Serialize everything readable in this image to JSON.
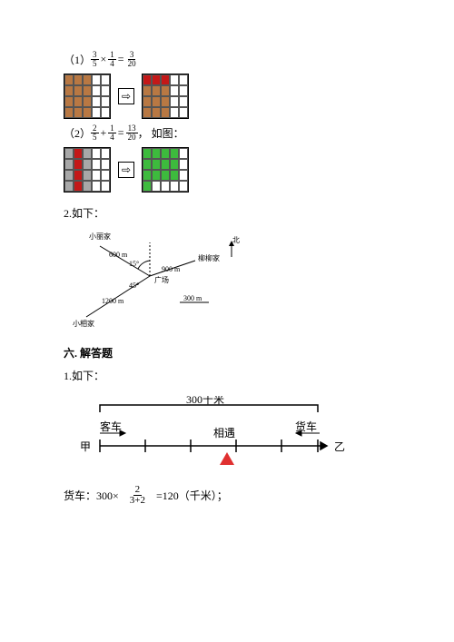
{
  "q1": {
    "prefix": "（1）",
    "f1": {
      "n": "3",
      "d": "5"
    },
    "op1": "×",
    "f2": {
      "n": "1",
      "d": "4"
    },
    "eqs": "=",
    "f3": {
      "n": "3",
      "d": "20"
    },
    "grid_left": {
      "rows": 4,
      "cols": 5,
      "fills": [
        "#b87843",
        "#b87843",
        "#b87843",
        "#fff",
        "#fff",
        "#b87843",
        "#b87843",
        "#b87843",
        "#fff",
        "#fff",
        "#b87843",
        "#b87843",
        "#b87843",
        "#fff",
        "#fff",
        "#b87843",
        "#b87843",
        "#b87843",
        "#fff",
        "#fff"
      ]
    },
    "grid_right": {
      "rows": 4,
      "cols": 5,
      "fills": [
        "#c41818",
        "#c41818",
        "#c41818",
        "#fff",
        "#fff",
        "#b87843",
        "#b87843",
        "#b87843",
        "#fff",
        "#fff",
        "#b87843",
        "#b87843",
        "#b87843",
        "#fff",
        "#fff",
        "#b87843",
        "#b87843",
        "#b87843",
        "#fff",
        "#fff"
      ]
    }
  },
  "q2": {
    "prefix": "（2）",
    "f1": {
      "n": "2",
      "d": "5"
    },
    "op1": "+",
    "f2": {
      "n": "1",
      "d": "4"
    },
    "eqs": "=",
    "f3": {
      "n": "13",
      "d": "20"
    },
    "suffix": "， 如图：",
    "grid_left": {
      "rows": 4,
      "cols": 5,
      "fills": [
        "#a8a8a8",
        "#c41818",
        "#a8a8a8",
        "#fff",
        "#fff",
        "#a8a8a8",
        "#c41818",
        "#a8a8a8",
        "#fff",
        "#fff",
        "#a8a8a8",
        "#c41818",
        "#a8a8a8",
        "#fff",
        "#fff",
        "#a8a8a8",
        "#c41818",
        "#a8a8a8",
        "#fff",
        "#fff"
      ]
    },
    "grid_right": {
      "rows": 4,
      "cols": 5,
      "fills": [
        "#3dbb3d",
        "#3dbb3d",
        "#3dbb3d",
        "#3dbb3d",
        "#fff",
        "#3dbb3d",
        "#3dbb3d",
        "#3dbb3d",
        "#3dbb3d",
        "#fff",
        "#3dbb3d",
        "#3dbb3d",
        "#3dbb3d",
        "#3dbb3d",
        "#fff",
        "#3dbb3d",
        "#fff",
        "#fff",
        "#fff",
        "#fff"
      ]
    }
  },
  "problem2": {
    "label": "2.如下："
  },
  "map": {
    "xiaoli": "小丽家",
    "d600": "600 m",
    "liuliu": "柳柳家",
    "bei": "北",
    "d900": "900 m",
    "guang": "广场",
    "a45": "45°",
    "a15": "15°",
    "d1200": "1200 m",
    "scale": "300 m",
    "xiaoxiang": "小相家"
  },
  "section6": "六. 解答题",
  "p1": "1.如下：",
  "numline": {
    "title": "300千米",
    "keche": "客车",
    "xiangyu": "相遇",
    "huoche": "货车",
    "jia": "甲",
    "yi": "乙",
    "triangle_color": "#e03030"
  },
  "final": {
    "pre": "货车：300×",
    "frac": {
      "n": "2",
      "d": "3+2"
    },
    "post": "=120（千米）；"
  }
}
